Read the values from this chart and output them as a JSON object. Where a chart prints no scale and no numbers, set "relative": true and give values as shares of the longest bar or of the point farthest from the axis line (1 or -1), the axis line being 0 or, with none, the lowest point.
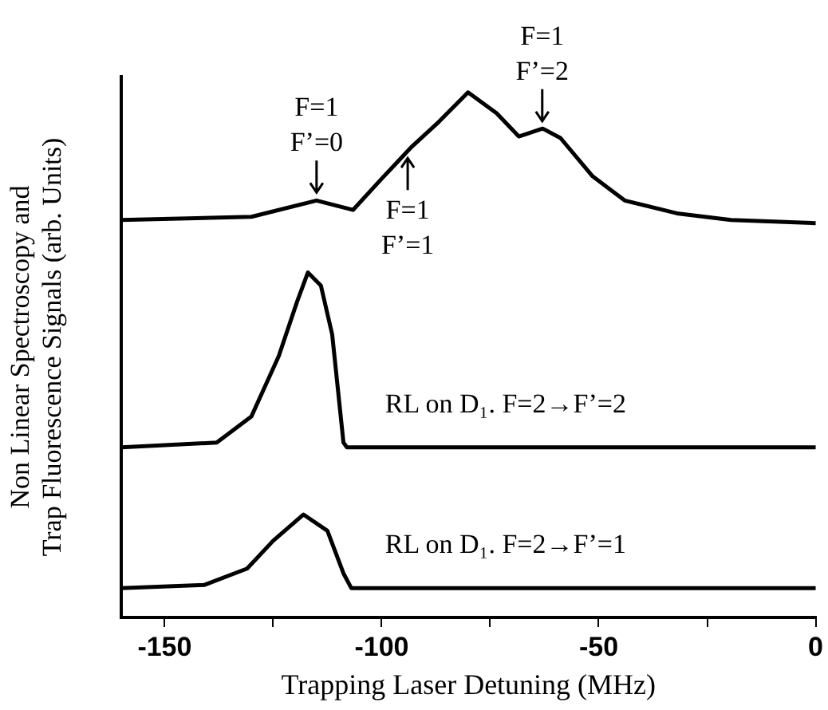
{
  "chart_data": {
    "type": "line",
    "relative": true,
    "xlabel": "Trapping Laser Detuning (MHz)",
    "ylabel": "Non Linear Spectroscopy and\nTrap Fluorescence Signals (arb. Units)",
    "xlim": [
      -160,
      0
    ],
    "xticks": [
      -150,
      {
        "value": -125,
        "label": null
      },
      -100,
      {
        "value": -75,
        "label": null
      },
      -50,
      {
        "value": -25,
        "label": null
      },
      0
    ],
    "grid": false,
    "legend": false,
    "marker": "none",
    "line_style": "solid",
    "series": [
      {
        "color": "#000000",
        "x": [
          -160,
          -130,
          -115,
          -106.6,
          -100.4,
          -93,
          -86.8,
          -80.1,
          -73.5,
          -68.4,
          -62.9,
          -58.8,
          -51.5,
          -44,
          -31.6,
          -19.5,
          0
        ],
        "values": [
          0.757,
          0.763,
          0.794,
          0.776,
          0.832,
          0.897,
          0.944,
          1.0,
          0.96,
          0.916,
          0.931,
          0.913,
          0.841,
          0.794,
          0.769,
          0.757,
          0.751
        ]
      },
      {
        "name": "RL on D₁. F=2→F’=2",
        "color": "#000000",
        "x": [
          -160,
          -138,
          -130,
          -123.7,
          -119.5,
          -117,
          -114,
          -111.4,
          -108.8,
          -108,
          0
        ],
        "values": [
          0.324,
          0.333,
          0.383,
          0.498,
          0.601,
          0.657,
          0.632,
          0.539,
          0.333,
          0.324,
          0.324
        ]
      },
      {
        "name": "RL on D₁. F=2→F’=1",
        "color": "#000000",
        "x": [
          -160,
          -140.8,
          -131,
          -125,
          -118,
          -112.5,
          -108.8,
          -107,
          0
        ],
        "values": [
          0.056,
          0.062,
          0.093,
          0.146,
          0.196,
          0.165,
          0.084,
          0.056,
          0.056
        ]
      }
    ],
    "annotations": [
      {
        "text": "F=1\nF’=0",
        "x": -115,
        "y": 0.794
      },
      {
        "text": "F=1\nF’=1",
        "x": -94,
        "y": 0.89
      },
      {
        "text": "F=1\nF’=2",
        "x": -63,
        "y": 0.93
      }
    ]
  }
}
